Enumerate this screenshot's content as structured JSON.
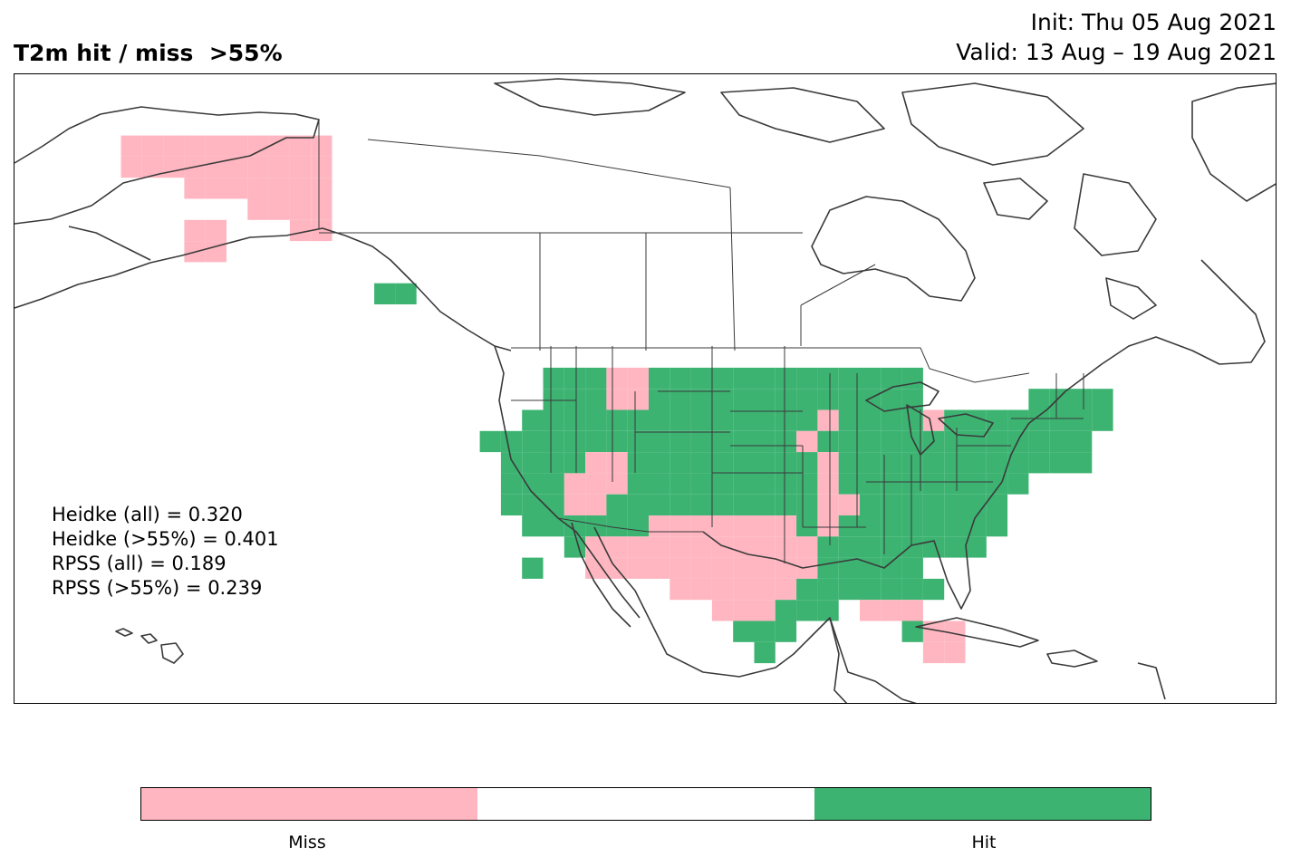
{
  "header": {
    "title": "T2m hit / miss  >55%",
    "init": "Init: Thu 05 Aug 2021",
    "valid": "Valid: 13 Aug – 19 Aug 2021"
  },
  "scores": [
    "Heidke (all) = 0.320",
    "Heidke (>55%) = 0.401",
    "RPSS (all) = 0.189",
    "RPSS (>55%) = 0.239"
  ],
  "colors": {
    "miss": "#ffb6c1",
    "neutral": "#ffffff",
    "hit": "#3cb371",
    "coast": "#3a3a3a"
  },
  "colorbar": {
    "segments": [
      "miss",
      "neutral",
      "hit"
    ],
    "labels": {
      "miss": "Miss",
      "hit": "Hit"
    }
  },
  "map": {
    "region": "North America",
    "projection": "lat-lon",
    "cell_grid": "coarse model grid boxes",
    "miss_regions": [
      "Alaska north slope",
      "Southwest US",
      "Texas",
      "Montana",
      "Idaho/Utah",
      "Mississippi valley",
      "Florida",
      "Michigan"
    ],
    "hit_regions": [
      "Northern Plains",
      "Pacific Northwest",
      "Great Lakes",
      "Northeast",
      "Southeast",
      "California coast",
      "Alaska panhandle"
    ]
  }
}
